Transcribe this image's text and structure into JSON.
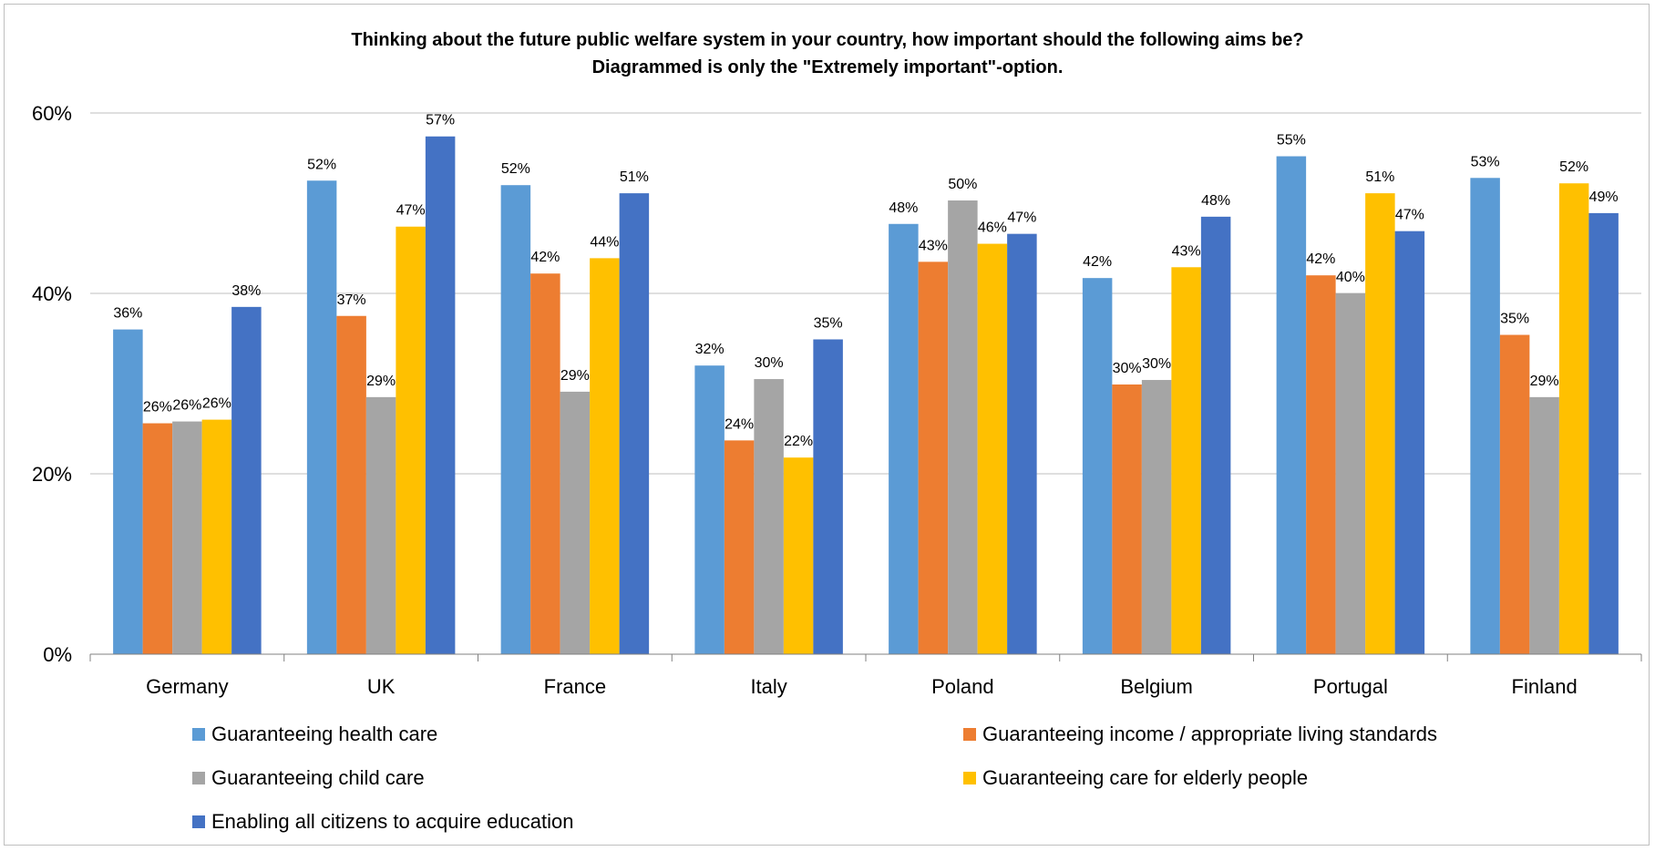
{
  "chart_data": {
    "type": "bar",
    "title": "Thinking about the future public welfare system in your country, how important should the following aims be?",
    "subtitle": "Diagrammed is only the \"Extremely important\"-option.",
    "xlabel": "",
    "ylabel": "",
    "ylim": [
      0,
      60
    ],
    "yticks": [
      "0%",
      "20%",
      "40%",
      "60%"
    ],
    "categories": [
      "Germany",
      "UK",
      "France",
      "Italy",
      "Poland",
      "Belgium",
      "Portugal",
      "Finland"
    ],
    "grid": true,
    "legend_position": "bottom",
    "series": [
      {
        "name": "Guaranteeing health care",
        "color": "#5b9bd5",
        "values": [
          36,
          52.5,
          52,
          32,
          47.7,
          41.7,
          55.2,
          52.8
        ],
        "labels": [
          "36%",
          "52%",
          "52%",
          "32%",
          "48%",
          "42%",
          "55%",
          "53%"
        ]
      },
      {
        "name": "Guaranteeing income / appropriate living standards",
        "color": "#ed7d31",
        "values": [
          25.6,
          37.5,
          42.2,
          23.7,
          43.5,
          29.9,
          42,
          35.4
        ],
        "labels": [
          "26%",
          "37%",
          "42%",
          "24%",
          "43%",
          "30%",
          "42%",
          "35%"
        ]
      },
      {
        "name": "Guaranteeing child care",
        "color": "#a5a5a5",
        "values": [
          25.8,
          28.5,
          29.1,
          30.5,
          50.3,
          30.4,
          40,
          28.5
        ],
        "labels": [
          "26%",
          "29%",
          "29%",
          "30%",
          "50%",
          "30%",
          "40%",
          "29%"
        ]
      },
      {
        "name": "Guaranteeing care for elderly people",
        "color": "#ffc000",
        "values": [
          26,
          47.4,
          43.9,
          21.8,
          45.5,
          42.9,
          51.1,
          52.2
        ],
        "labels": [
          "26%",
          "47%",
          "44%",
          "22%",
          "46%",
          "43%",
          "51%",
          "52%"
        ]
      },
      {
        "name": "Enabling all citizens to acquire education",
        "color": "#4472c4",
        "values": [
          38.5,
          57.4,
          51.1,
          34.9,
          46.6,
          48.5,
          46.9,
          48.9
        ],
        "labels": [
          "38%",
          "57%",
          "51%",
          "35%",
          "47%",
          "48%",
          "47%",
          "49%"
        ]
      }
    ]
  }
}
